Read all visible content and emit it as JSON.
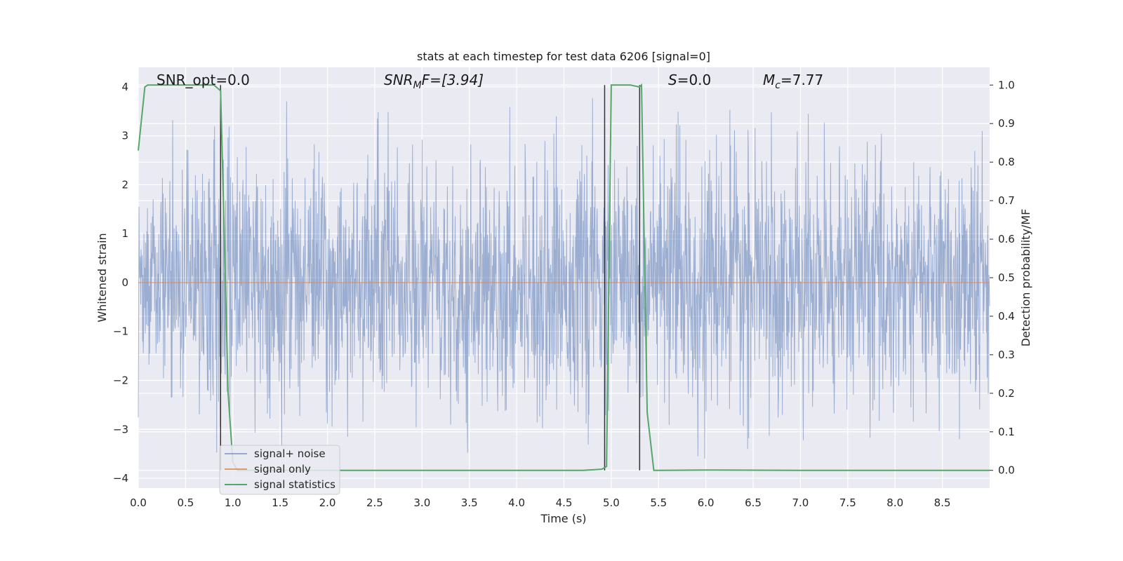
{
  "chart_data": {
    "type": "line",
    "title": "stats at each timestep for test data 6206 [signal=0]",
    "xlabel": "Time (s)",
    "ylabel": "Whitened strain",
    "ylabel_right": "Detection probability/MF",
    "xlim": [
      0.0,
      9.0
    ],
    "ylim": [
      -4.2,
      4.4
    ],
    "ylim_right": [
      -0.046,
      1.046
    ],
    "x_ticks": [
      "0.0",
      "0.5",
      "1.0",
      "1.5",
      "2.0",
      "2.5",
      "3.0",
      "3.5",
      "4.0",
      "4.5",
      "5.0",
      "5.5",
      "6.0",
      "6.5",
      "7.0",
      "7.5",
      "8.0",
      "8.5"
    ],
    "y_ticks": [
      "4",
      "3",
      "2",
      "1",
      "0",
      "−1",
      "−2",
      "−3",
      "−4"
    ],
    "y_ticks_right": [
      "1.0",
      "0.9",
      "0.8",
      "0.7",
      "0.6",
      "0.5",
      "0.4",
      "0.3",
      "0.2",
      "0.1",
      "0.0"
    ],
    "grid": true,
    "legend_position": "lower-left",
    "annotations": {
      "snr_opt": "SNR_opt=0.0",
      "snr_mf_base": "SNR",
      "snr_mf_sub": "M",
      "snr_mf_rest": "F=[3.94]",
      "s_italic": "S",
      "s_rest": "=0.0",
      "mc_base": "M",
      "mc_sub": "c",
      "mc_rest": "=7.77"
    },
    "series": [
      {
        "name": "signal+ noise",
        "color": "#4c72b0",
        "description_level": "whitened noise, roughly ±2.5 with peaks to ±4",
        "sample_rate_hint": 2048
      },
      {
        "name": "signal only",
        "color": "#dd8452",
        "x": [
          0.0,
          9.0
        ],
        "y": [
          0.0,
          0.0
        ]
      },
      {
        "name": "signal statistics",
        "color": "#55a868",
        "axis": "right",
        "x": [
          0.0,
          0.07,
          0.1,
          0.2,
          0.5,
          0.8,
          0.87,
          0.9,
          0.95,
          1.0,
          1.05,
          1.1,
          1.2,
          2.0,
          3.0,
          4.0,
          4.7,
          4.9,
          4.95,
          5.0,
          5.2,
          5.3,
          5.32,
          5.38,
          5.45,
          5.5,
          6.0,
          7.0,
          8.0,
          9.0
        ],
        "y": [
          0.83,
          0.995,
          1.0,
          1.0,
          1.0,
          1.0,
          0.985,
          0.7,
          0.2,
          0.02,
          0.0,
          0.0,
          0.0,
          0.0,
          0.0,
          0.0,
          0.0,
          0.003,
          0.01,
          1.0,
          1.0,
          0.995,
          1.0,
          0.15,
          0.0,
          0.0,
          0.001,
          0.0,
          0.0,
          0.0
        ]
      }
    ],
    "vertical_markers_x": [
      0.87,
      4.93,
      5.3
    ],
    "vertical_marker_color": "#333333"
  }
}
